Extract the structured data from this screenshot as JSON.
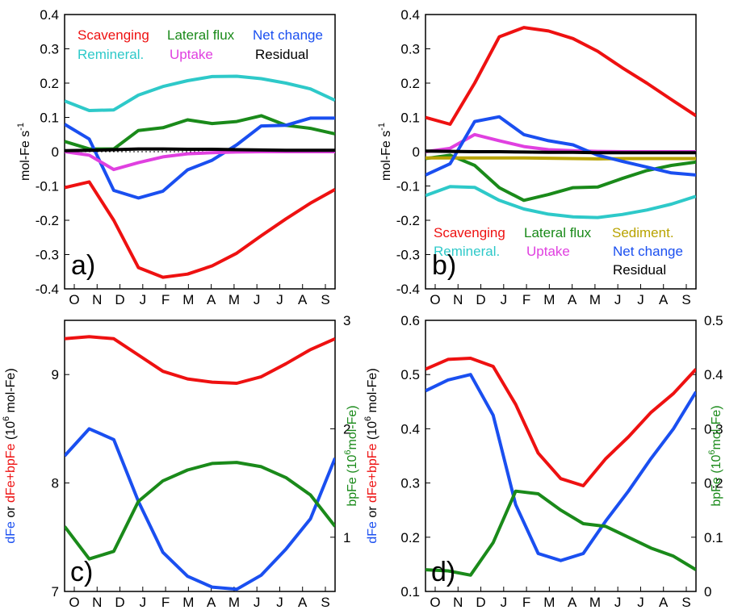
{
  "figure": {
    "months": [
      "O",
      "N",
      "D",
      "J",
      "F",
      "M",
      "A",
      "M",
      "J",
      "J",
      "A",
      "S"
    ],
    "colors": {
      "red": "#ee1111",
      "cyan": "#2ec9c9",
      "green": "#1a8a1a",
      "blue": "#1a4ff0",
      "magenta": "#e040e0",
      "black": "#000000",
      "olive": "#b8a300"
    }
  },
  "chart_data": [
    {
      "id": "a",
      "panel_label": "a)",
      "type": "line",
      "ylabel": {
        "base": "mol-Fe s",
        "sup": "-1"
      },
      "ylim": [
        -0.4,
        0.4
      ],
      "yticks": [
        "-0.4",
        "-0.3",
        "-0.2",
        "-0.1",
        "0",
        "0.1",
        "0.2",
        "0.3",
        "0.4"
      ],
      "zero_line": true,
      "series": [
        {
          "name": "Scavenging",
          "color": "#ee1111",
          "values": [
            -0.105,
            -0.088,
            -0.2,
            -0.338,
            -0.366,
            -0.357,
            -0.333,
            -0.296,
            -0.245,
            -0.196,
            -0.15,
            -0.11
          ]
        },
        {
          "name": "Lateral flux",
          "color": "#1a8a1a",
          "values": [
            0.03,
            0.008,
            0.008,
            0.062,
            0.07,
            0.093,
            0.082,
            0.088,
            0.105,
            0.077,
            0.068,
            0.052
          ]
        },
        {
          "name": "Net change",
          "color": "#1a4ff0",
          "values": [
            0.08,
            0.037,
            -0.113,
            -0.135,
            -0.115,
            -0.053,
            -0.025,
            0.02,
            0.075,
            0.077,
            0.098,
            0.098
          ]
        },
        {
          "name": "Remineral.",
          "color": "#2ec9c9",
          "values": [
            0.148,
            0.12,
            0.122,
            0.165,
            0.19,
            0.207,
            0.219,
            0.22,
            0.213,
            0.2,
            0.183,
            0.15
          ]
        },
        {
          "name": "Uptake",
          "color": "#e040e0",
          "values": [
            0,
            -0.01,
            -0.052,
            -0.032,
            -0.015,
            -0.006,
            -0.003,
            -0.001,
            0,
            0,
            0,
            0
          ]
        },
        {
          "name": "Residual",
          "color": "#000000",
          "values": [
            0.003,
            0.004,
            0.006,
            0.008,
            0.008,
            0.007,
            0.007,
            0.006,
            0.005,
            0.004,
            0.004,
            0.004
          ]
        }
      ]
    },
    {
      "id": "b",
      "panel_label": "b)",
      "type": "line",
      "ylabel": {
        "base": "mol-Fe s",
        "sup": "-1"
      },
      "ylim": [
        -0.4,
        0.4
      ],
      "yticks": [
        "-0.4",
        "-0.3",
        "-0.2",
        "-0.1",
        "0",
        "0.1",
        "0.2",
        "0.3",
        "0.4"
      ],
      "zero_line": true,
      "series": [
        {
          "name": "Scavenging",
          "color": "#ee1111",
          "values": [
            0.1,
            0.08,
            0.2,
            0.335,
            0.362,
            0.352,
            0.33,
            0.293,
            0.245,
            0.2,
            0.152,
            0.105
          ]
        },
        {
          "name": "Lateral flux",
          "color": "#1a8a1a",
          "values": [
            -0.02,
            -0.01,
            -0.04,
            -0.105,
            -0.142,
            -0.125,
            -0.105,
            -0.103,
            -0.078,
            -0.055,
            -0.04,
            -0.03
          ]
        },
        {
          "name": "Sediment.",
          "color": "#b8a300",
          "values": [
            -0.018,
            -0.018,
            -0.018,
            -0.018,
            -0.018,
            -0.019,
            -0.02,
            -0.021,
            -0.02,
            -0.02,
            -0.02,
            -0.02
          ]
        },
        {
          "name": "Remineral.",
          "color": "#2ec9c9",
          "values": [
            -0.128,
            -0.102,
            -0.104,
            -0.142,
            -0.167,
            -0.182,
            -0.19,
            -0.192,
            -0.183,
            -0.17,
            -0.153,
            -0.13
          ]
        },
        {
          "name": "Uptake",
          "color": "#e040e0",
          "values": [
            0,
            0.01,
            0.05,
            0.032,
            0.015,
            0.006,
            0.003,
            0.001,
            0,
            0,
            0,
            0
          ]
        },
        {
          "name": "Net change",
          "color": "#1a4ff0",
          "values": [
            -0.068,
            -0.035,
            0.088,
            0.102,
            0.05,
            0.032,
            0.02,
            -0.01,
            -0.028,
            -0.045,
            -0.062,
            -0.068
          ]
        },
        {
          "name": "Residual",
          "color": "#000000",
          "values": [
            0.002,
            0.001,
            0,
            0,
            -0.001,
            -0.002,
            -0.002,
            -0.003,
            -0.003,
            -0.003,
            -0.003,
            -0.003
          ]
        }
      ]
    },
    {
      "id": "c",
      "panel_label": "c)",
      "type": "line",
      "ylabel_parts": [
        {
          "text": "dFe",
          "color": "#1a4ff0"
        },
        {
          "text": " or ",
          "color": "#000000"
        },
        {
          "text": "dFe+bpFe",
          "color": "#ee1111"
        },
        {
          "text": " (10",
          "color": "#000000"
        },
        {
          "text": "6",
          "color": "#000000",
          "sup": true
        },
        {
          "text": " mol-Fe)",
          "color": "#000000"
        }
      ],
      "y2label_parts": [
        {
          "text": "bpFe (10",
          "color": "#1a8a1a"
        },
        {
          "text": "6",
          "color": "#1a8a1a",
          "sup": true
        },
        {
          "text": "mol-Fe)",
          "color": "#1a8a1a"
        }
      ],
      "ylim": [
        7,
        9.5
      ],
      "yticks": [
        "7",
        "8",
        "9"
      ],
      "ytick_values": [
        7,
        8,
        9
      ],
      "y2lim": [
        0.5,
        3
      ],
      "y2ticks": [
        "1",
        "2",
        "3"
      ],
      "y2tick_values": [
        1,
        2,
        3
      ],
      "series": [
        {
          "name": "dFe+bpFe",
          "color": "#ee1111",
          "axis": "left",
          "values": [
            9.33,
            9.35,
            9.33,
            9.18,
            9.03,
            8.96,
            8.93,
            8.92,
            8.98,
            9.1,
            9.23,
            9.33
          ]
        },
        {
          "name": "dFe",
          "color": "#1a4ff0",
          "axis": "left",
          "values": [
            8.25,
            8.5,
            8.4,
            7.83,
            7.36,
            7.14,
            7.04,
            7.02,
            7.15,
            7.39,
            7.67,
            8.23
          ]
        },
        {
          "name": "bpFe",
          "color": "#1a8a1a",
          "axis": "right",
          "values": [
            1.1,
            0.8,
            0.87,
            1.33,
            1.52,
            1.62,
            1.68,
            1.69,
            1.65,
            1.55,
            1.39,
            1.1
          ]
        }
      ]
    },
    {
      "id": "d",
      "panel_label": "d)",
      "type": "line",
      "ylabel_parts": [
        {
          "text": "dFe",
          "color": "#1a4ff0"
        },
        {
          "text": " or ",
          "color": "#000000"
        },
        {
          "text": "dFe+bpFe",
          "color": "#ee1111"
        },
        {
          "text": " (10",
          "color": "#000000"
        },
        {
          "text": "6",
          "color": "#000000",
          "sup": true
        },
        {
          "text": " mol-Fe)",
          "color": "#000000"
        }
      ],
      "y2label_parts": [
        {
          "text": "bpFe (10",
          "color": "#1a8a1a"
        },
        {
          "text": "6",
          "color": "#1a8a1a",
          "sup": true
        },
        {
          "text": "mol-Fe)",
          "color": "#1a8a1a"
        }
      ],
      "ylim": [
        0.1,
        0.6
      ],
      "yticks": [
        "0.1",
        "0.2",
        "0.3",
        "0.4",
        "0.5",
        "0.6"
      ],
      "ytick_values": [
        0.1,
        0.2,
        0.3,
        0.4,
        0.5,
        0.6
      ],
      "y2lim": [
        0,
        0.5
      ],
      "y2ticks": [
        "0",
        "0.1",
        "0.2",
        "0.3",
        "0.4",
        "0.5"
      ],
      "y2tick_values": [
        0,
        0.1,
        0.2,
        0.3,
        0.4,
        0.5
      ],
      "series": [
        {
          "name": "dFe+bpFe",
          "color": "#ee1111",
          "axis": "left",
          "values": [
            0.51,
            0.528,
            0.53,
            0.515,
            0.445,
            0.355,
            0.308,
            0.295,
            0.345,
            0.385,
            0.43,
            0.465,
            0.51
          ]
        },
        {
          "name": "dFe",
          "color": "#1a4ff0",
          "axis": "left",
          "values": [
            0.47,
            0.49,
            0.5,
            0.425,
            0.26,
            0.17,
            0.157,
            0.17,
            0.23,
            0.285,
            0.345,
            0.4,
            0.468
          ]
        },
        {
          "name": "bpFe",
          "color": "#1a8a1a",
          "axis": "right",
          "values": [
            0.04,
            0.038,
            0.03,
            0.09,
            0.185,
            0.18,
            0.15,
            0.125,
            0.12,
            0.1,
            0.08,
            0.065,
            0.04
          ]
        }
      ]
    }
  ]
}
